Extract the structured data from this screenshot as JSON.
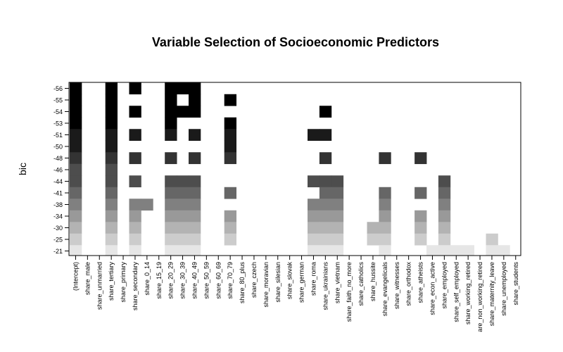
{
  "chart_data": {
    "type": "heatmap",
    "title": "Variable Selection of Socioeconomic Predictors",
    "ylabel": "bic",
    "xlabel": "",
    "variables": [
      "(Intercept)",
      "share_male",
      "share_unmarried",
      "share_tertiary",
      "share_primary",
      "share_secondary",
      "share_0_14",
      "share_15_19",
      "share_20_29",
      "share_30_39",
      "share_40_49",
      "share_50_59",
      "share_60_69",
      "share_70_79",
      "share_80_plus",
      "share_czech",
      "share_moravian",
      "share_silesian",
      "share_slovak",
      "share_german",
      "share_roma",
      "share_ukrainians",
      "share_vietnam",
      "share_faith_no_more",
      "share_catholics",
      "share_hussite",
      "share_evangelicals",
      "share_witnesses",
      "share_orthodox",
      "share_atheists",
      "share_econ_active",
      "share_employed",
      "share_self_employed",
      "share_working_retired",
      "are_non_working_retired",
      "share_maternity_leave",
      "share_unemployed",
      "share_students"
    ],
    "bic": [
      -56,
      -55,
      -54,
      -53,
      -51,
      -50,
      -48,
      -46,
      -44,
      -41,
      -38,
      -34,
      -30,
      -25,
      -21
    ],
    "shades": [
      "#000000",
      "#000000",
      "#000000",
      "#000000",
      "#1a1a1a",
      "#1a1a1a",
      "#333333",
      "#4d4d4d",
      "#4d4d4d",
      "#666666",
      "#808080",
      "#999999",
      "#b3b3b3",
      "#cccccc",
      "#e6e6e6"
    ],
    "selected": [
      [
        0,
        3,
        5,
        8,
        9,
        10
      ],
      [
        0,
        3,
        8,
        10,
        13
      ],
      [
        0,
        3,
        5,
        8,
        9,
        10,
        21
      ],
      [
        0,
        3,
        8,
        13
      ],
      [
        0,
        3,
        5,
        8,
        10,
        13,
        20,
        21
      ],
      [
        0,
        3,
        13
      ],
      [
        0,
        3,
        5,
        8,
        10,
        13,
        21,
        26,
        29
      ],
      [
        0,
        3
      ],
      [
        0,
        3,
        5,
        8,
        9,
        10,
        20,
        21,
        22,
        31
      ],
      [
        0,
        3,
        8,
        9,
        10,
        13,
        21,
        22,
        26,
        29,
        31
      ],
      [
        0,
        3,
        5,
        6,
        8,
        9,
        10,
        20,
        21,
        22,
        26,
        31
      ],
      [
        0,
        3,
        5,
        8,
        9,
        10,
        13,
        20,
        21,
        22,
        26,
        29,
        31
      ],
      [
        0,
        3,
        5,
        8,
        9,
        10,
        13,
        20,
        21,
        22,
        25,
        26,
        29,
        31
      ],
      [
        0,
        3,
        5,
        8,
        9,
        10,
        13,
        20,
        21,
        22,
        25,
        26,
        29,
        31,
        35
      ],
      [
        0,
        3,
        5,
        8,
        9,
        10,
        20,
        21,
        22,
        26,
        30,
        31,
        32,
        33,
        35,
        36
      ]
    ]
  }
}
